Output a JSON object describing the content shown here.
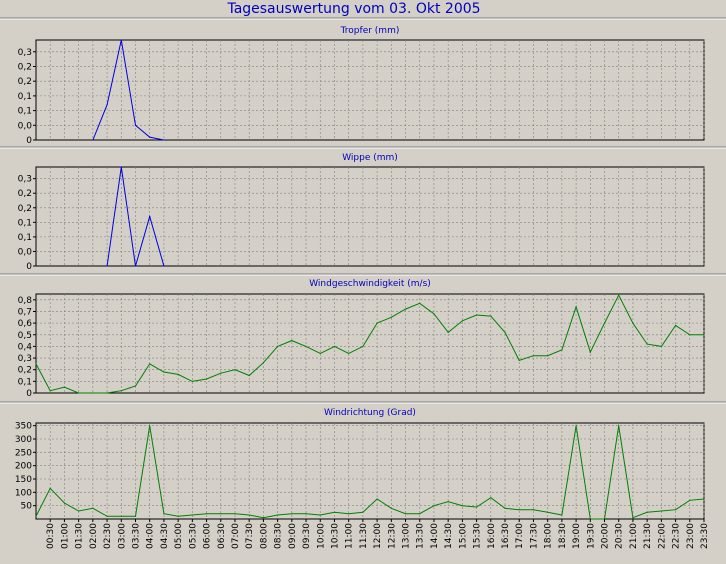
{
  "page": {
    "title": "Tagesauswertung vom 03. Okt 2005"
  },
  "colors": {
    "background": "#d4d0c8",
    "title": "#0000c0",
    "blue_series": "#0000e0",
    "green_series": "#008000",
    "grid": "#808080"
  },
  "chart_data": [
    {
      "type": "line",
      "title": "Tropfer (mm)",
      "color": "#0000e0",
      "ylim": [
        0,
        0.34
      ],
      "yticks": [
        0,
        0.05,
        0.1,
        0.15,
        0.2,
        0.25,
        0.3
      ],
      "ytick_labels": [
        "0",
        "0,0",
        "0,1",
        "0,1",
        "0,2",
        "0,2",
        "0,3"
      ],
      "grid": true,
      "x": [
        "02:00",
        "02:30",
        "03:00",
        "03:30",
        "04:00",
        "04:30"
      ],
      "y": [
        0,
        0.12,
        0.34,
        0.05,
        0.01,
        0
      ]
    },
    {
      "type": "line",
      "title": "Wippe (mm)",
      "color": "#0000e0",
      "ylim": [
        0,
        0.34
      ],
      "yticks": [
        0,
        0.05,
        0.1,
        0.15,
        0.2,
        0.25,
        0.3
      ],
      "ytick_labels": [
        "0",
        "0,0",
        "0,1",
        "0,1",
        "0,2",
        "0,2",
        "0,3"
      ],
      "grid": true,
      "x": [
        "02:30",
        "03:00",
        "03:30",
        "04:00",
        "04:30"
      ],
      "y": [
        0,
        0.34,
        0,
        0.17,
        0
      ]
    },
    {
      "type": "line",
      "title": "Windgeschwindigkeit (m/s)",
      "color": "#008000",
      "ylim": [
        0,
        0.85
      ],
      "yticks": [
        0,
        0.1,
        0.2,
        0.3,
        0.4,
        0.5,
        0.6,
        0.7,
        0.8
      ],
      "ytick_labels": [
        "0",
        "0,1",
        "0,2",
        "0,3",
        "0,4",
        "0,5",
        "0,6",
        "0,7",
        "0,8"
      ],
      "grid": true,
      "x": [
        "00:00",
        "00:30",
        "01:00",
        "01:30",
        "02:00",
        "02:30",
        "03:00",
        "03:30",
        "04:00",
        "04:30",
        "05:00",
        "05:30",
        "06:00",
        "06:30",
        "07:00",
        "07:30",
        "08:00",
        "08:30",
        "09:00",
        "09:30",
        "10:00",
        "10:30",
        "11:00",
        "11:30",
        "12:00",
        "12:30",
        "13:00",
        "13:30",
        "14:00",
        "14:30",
        "15:00",
        "15:30",
        "16:00",
        "16:30",
        "17:00",
        "17:30",
        "18:00",
        "18:30",
        "19:00",
        "19:30",
        "20:00",
        "20:30",
        "21:00",
        "21:30",
        "22:00",
        "22:30",
        "23:00",
        "23:30"
      ],
      "y": [
        0.25,
        0.02,
        0.05,
        0,
        0,
        0,
        0.02,
        0.06,
        0.25,
        0.18,
        0.16,
        0.1,
        0.12,
        0.17,
        0.2,
        0.15,
        0.26,
        0.4,
        0.45,
        0.4,
        0.34,
        0.4,
        0.34,
        0.4,
        0.6,
        0.65,
        0.72,
        0.77,
        0.68,
        0.52,
        0.62,
        0.67,
        0.66,
        0.52,
        0.28,
        0.32,
        0.32,
        0.37,
        0.74,
        0.35,
        0.6,
        0.84,
        0.6,
        0.42,
        0.4,
        0.58,
        0.5,
        0.5
      ]
    },
    {
      "type": "line",
      "title": "Windrichtung (Grad)",
      "color": "#008000",
      "ylim": [
        0,
        360
      ],
      "yticks": [
        50,
        100,
        150,
        200,
        250,
        300,
        350
      ],
      "ytick_labels": [
        "50",
        "100",
        "150",
        "200",
        "250",
        "300",
        "350"
      ],
      "grid": true,
      "x": [
        "00:00",
        "00:30",
        "01:00",
        "01:30",
        "02:00",
        "02:30",
        "03:00",
        "03:30",
        "04:00",
        "04:30",
        "05:00",
        "05:30",
        "06:00",
        "06:30",
        "07:00",
        "07:30",
        "08:00",
        "08:30",
        "09:00",
        "09:30",
        "10:00",
        "10:30",
        "11:00",
        "11:30",
        "12:00",
        "12:30",
        "13:00",
        "13:30",
        "14:00",
        "14:30",
        "15:00",
        "15:30",
        "16:00",
        "16:30",
        "17:00",
        "17:30",
        "18:00",
        "18:30",
        "19:00",
        "19:30",
        "20:00",
        "20:30",
        "21:00",
        "21:30",
        "22:00",
        "22:30",
        "23:00",
        "23:30"
      ],
      "y": [
        10,
        115,
        60,
        30,
        40,
        10,
        10,
        10,
        350,
        20,
        10,
        15,
        20,
        20,
        20,
        15,
        5,
        15,
        20,
        20,
        15,
        25,
        20,
        25,
        75,
        40,
        20,
        20,
        50,
        65,
        50,
        45,
        80,
        40,
        35,
        35,
        25,
        15,
        350,
        0,
        0,
        350,
        5,
        25,
        30,
        35,
        70,
        75
      ]
    }
  ],
  "x_axis": {
    "tick_labels": [
      "00:30",
      "01:00",
      "01:30",
      "02:00",
      "02:30",
      "03:00",
      "03:30",
      "04:00",
      "04:30",
      "05:00",
      "05:30",
      "06:00",
      "06:30",
      "07:00",
      "07:30",
      "08:00",
      "08:30",
      "09:00",
      "09:30",
      "10:00",
      "10:30",
      "11:00",
      "11:30",
      "12:00",
      "12:30",
      "13:00",
      "13:30",
      "14:00",
      "14:30",
      "15:00",
      "15:30",
      "16:00",
      "16:30",
      "17:00",
      "17:30",
      "18:00",
      "18:30",
      "19:00",
      "19:30",
      "20:00",
      "20:30",
      "21:00",
      "21:30",
      "22:00",
      "22:30",
      "23:00",
      "23:30"
    ]
  }
}
